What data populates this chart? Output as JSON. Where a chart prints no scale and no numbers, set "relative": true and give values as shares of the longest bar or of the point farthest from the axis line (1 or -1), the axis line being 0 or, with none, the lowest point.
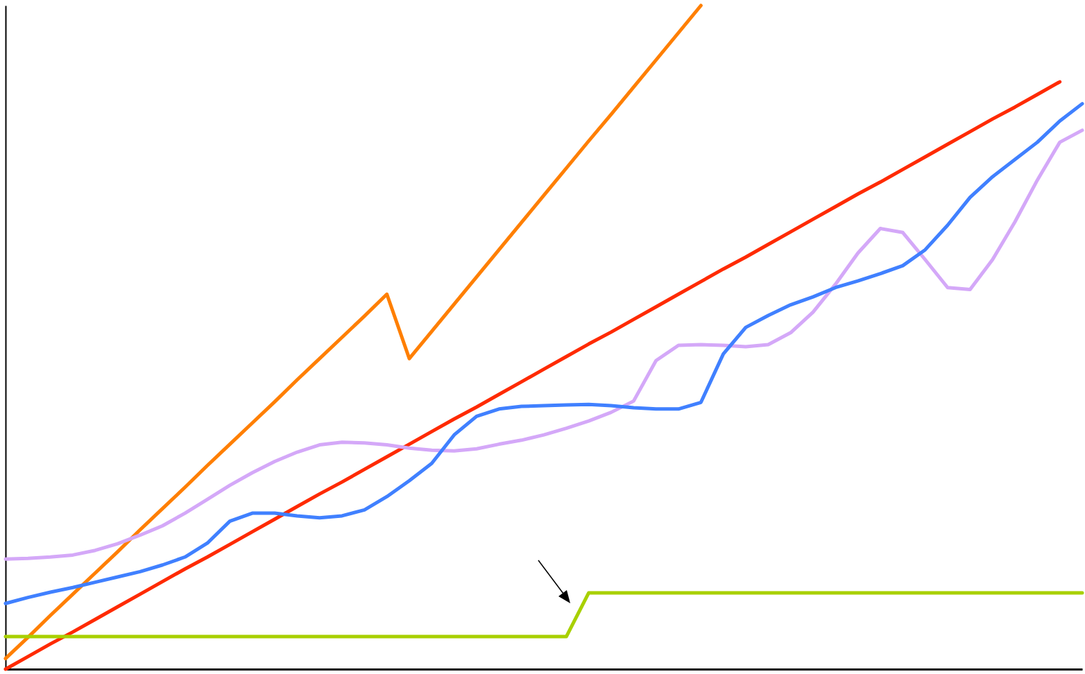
{
  "chart_data": {
    "type": "line",
    "relative": true,
    "grid": false,
    "marker": "none",
    "line_style": "solid",
    "categories": [
      null,
      null,
      null,
      null,
      null,
      null,
      null,
      null,
      null,
      null,
      null,
      null,
      null,
      null,
      null,
      null,
      null,
      null,
      null,
      null,
      null,
      null,
      null,
      null,
      null,
      null,
      null,
      null,
      null,
      null,
      null,
      null,
      null,
      null,
      null,
      null,
      null,
      null,
      null,
      null,
      null,
      null,
      null,
      null,
      null,
      null,
      null,
      null,
      null
    ],
    "series": [
      {
        "color": "#ff7f00",
        "values": [
          0.016,
          0.048,
          0.081,
          0.113,
          0.145,
          0.177,
          0.21,
          0.242,
          0.274,
          0.307,
          0.339,
          0.371,
          0.403,
          0.436,
          0.468,
          0.5,
          0.532,
          0.565,
          0.468,
          0.509,
          0.55,
          0.591,
          0.632,
          0.673,
          0.714,
          0.755,
          0.796,
          0.836,
          0.877,
          0.918,
          0.959,
          1.0,
          null,
          null,
          null,
          null,
          null,
          null,
          null,
          null,
          null,
          null,
          null,
          null,
          null,
          null,
          null,
          null,
          null
        ]
      },
      {
        "color": "#ff2a00",
        "values": [
          0,
          0.019,
          0.038,
          0.056,
          0.075,
          0.094,
          0.113,
          0.132,
          0.151,
          0.169,
          0.188,
          0.207,
          0.226,
          0.245,
          0.264,
          0.282,
          0.301,
          0.32,
          0.339,
          0.358,
          0.377,
          0.395,
          0.414,
          0.433,
          0.452,
          0.471,
          0.49,
          0.508,
          0.527,
          0.546,
          0.565,
          0.584,
          0.603,
          0.621,
          0.64,
          0.659,
          0.678,
          0.697,
          0.716,
          0.734,
          0.753,
          0.772,
          0.791,
          0.81,
          0.829,
          0.847,
          0.866,
          0.885,
          null
        ]
      },
      {
        "color": "#d4a8f8",
        "values": [
          0.166,
          0.167,
          0.169,
          0.172,
          0.179,
          0.189,
          0.202,
          0.216,
          0.235,
          0.256,
          0.277,
          0.296,
          0.313,
          0.327,
          0.338,
          0.342,
          0.341,
          0.338,
          0.333,
          0.33,
          0.329,
          0.332,
          0.339,
          0.345,
          0.353,
          0.363,
          0.374,
          0.387,
          0.404,
          0.465,
          0.488,
          0.489,
          0.488,
          0.486,
          0.489,
          0.507,
          0.538,
          0.58,
          0.627,
          0.664,
          0.658,
          0.617,
          0.575,
          0.572,
          0.617,
          0.674,
          0.737,
          0.794,
          0.812
        ]
      },
      {
        "color": "#4080ff",
        "values": [
          0.099,
          0.108,
          0.116,
          0.123,
          0.131,
          0.139,
          0.147,
          0.157,
          0.169,
          0.19,
          0.223,
          0.235,
          0.235,
          0.231,
          0.228,
          0.231,
          0.24,
          0.26,
          0.284,
          0.31,
          0.353,
          0.381,
          0.392,
          0.396,
          0.397,
          0.398,
          0.399,
          0.397,
          0.394,
          0.392,
          0.392,
          0.402,
          0.475,
          0.515,
          0.533,
          0.549,
          0.561,
          0.575,
          0.585,
          0.596,
          0.608,
          0.632,
          0.669,
          0.711,
          0.742,
          0.768,
          0.794,
          0.826,
          0.852
        ]
      },
      {
        "color": "#a8d000",
        "values": [
          0.049,
          0.049,
          0.049,
          0.049,
          0.049,
          0.049,
          0.049,
          0.049,
          0.049,
          0.049,
          0.049,
          0.049,
          0.049,
          0.049,
          0.049,
          0.049,
          0.049,
          0.049,
          0.049,
          0.049,
          0.049,
          0.049,
          0.049,
          0.049,
          0.049,
          0.049,
          0.115,
          0.115,
          0.115,
          0.115,
          0.115,
          0.115,
          0.115,
          0.115,
          0.115,
          0.115,
          0.115,
          0.115,
          0.115,
          0.115,
          0.115,
          0.115,
          0.115,
          0.115,
          0.115,
          0.115,
          0.115,
          0.115,
          0.115
        ]
      }
    ]
  }
}
